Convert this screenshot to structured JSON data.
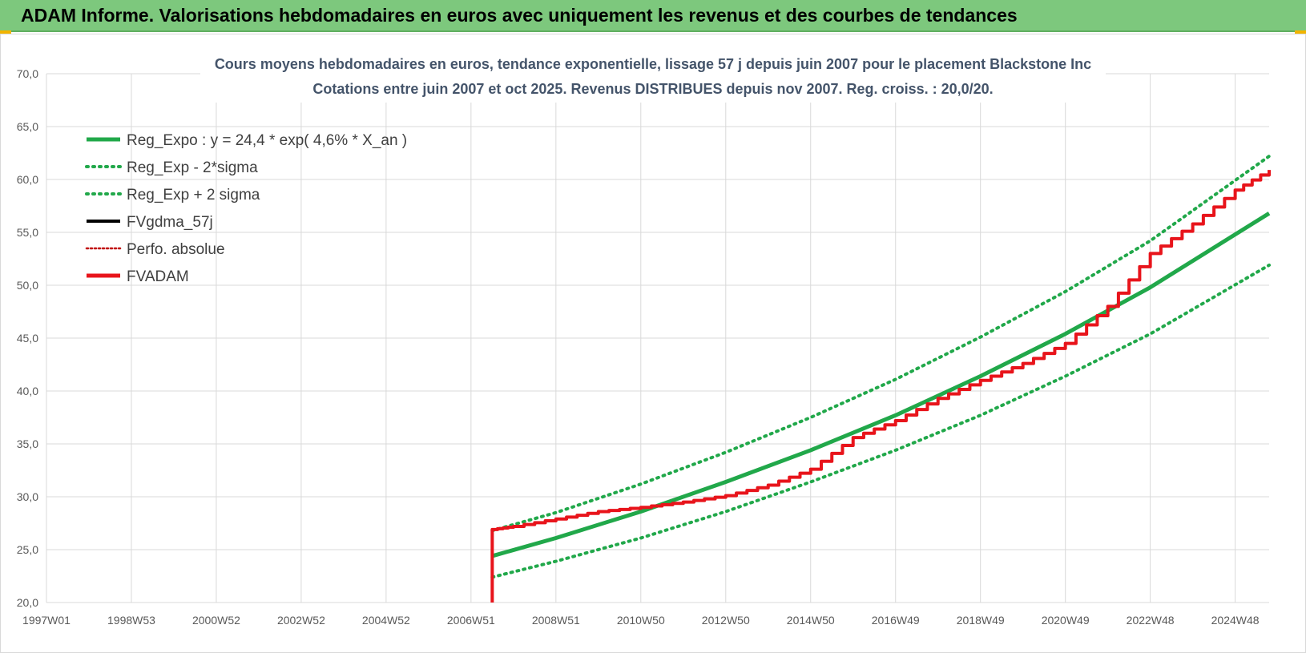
{
  "header": {
    "title": "ADAM Informe. Valorisations hebdomadaires en euros avec uniquement les revenus et des courbes de tendances"
  },
  "colors": {
    "header_bg": "#7dc87d",
    "reg_green": "#21a84a",
    "red": "#e8141b",
    "black": "#000000",
    "dark_red": "#c00000",
    "grid": "#d9d9d9"
  },
  "chart_data": {
    "type": "line",
    "title": "Cours moyens hebdomadaires en euros, tendance exponentielle, lissage 57 j depuis juin 2007 pour le placement Blackstone Inc",
    "subtitle": "Cotations entre juin 2007 et oct 2025. Revenus DISTRIBUES depuis nov 2007. Reg. croiss. : 20,0/20.",
    "xlabel": "",
    "ylabel": "",
    "ylim": [
      20,
      70
    ],
    "xlim": [
      1997.0,
      2025.8
    ],
    "grid": true,
    "legend_position": "top-left",
    "x_tick_labels": [
      "1997W01",
      "1998W53",
      "2000W52",
      "2002W52",
      "2004W52",
      "2006W51",
      "2008W51",
      "2010W50",
      "2012W50",
      "2014W50",
      "2016W49",
      "2018W49",
      "2020W49",
      "2022W48",
      "2024W48"
    ],
    "x_tick_values": [
      1997.0,
      1999.0,
      2001.0,
      2003.0,
      2005.0,
      2007.0,
      2009.0,
      2011.0,
      2013.0,
      2015.0,
      2017.0,
      2019.0,
      2021.0,
      2023.0,
      2025.0
    ],
    "y_tick_labels": [
      "20,0",
      "25,0",
      "30,0",
      "35,0",
      "40,0",
      "45,0",
      "50,0",
      "55,0",
      "60,0",
      "65,0",
      "70,0"
    ],
    "y_tick_values": [
      20,
      25,
      30,
      35,
      40,
      45,
      50,
      55,
      60,
      65,
      70
    ],
    "series": [
      {
        "name": "Reg_Expo : y = 24,4 * exp( 4,6% *  X_an )",
        "style": "solid-thick",
        "color": "#21a84a",
        "x": [
          2007.5,
          2009,
          2011,
          2013,
          2015,
          2017,
          2019,
          2021,
          2023,
          2025.8
        ],
        "y": [
          24.4,
          26.1,
          28.6,
          31.4,
          34.4,
          37.7,
          41.4,
          45.4,
          49.8,
          56.8
        ]
      },
      {
        "name": "Reg_Exp - 2*sigma",
        "style": "dotted",
        "color": "#21a84a",
        "x": [
          2007.5,
          2009,
          2011,
          2013,
          2015,
          2017,
          2019,
          2021,
          2023,
          2025.8
        ],
        "y": [
          22.4,
          23.9,
          26.1,
          28.6,
          31.4,
          34.4,
          37.7,
          41.4,
          45.4,
          51.9
        ]
      },
      {
        "name": "Reg_Exp + 2 sigma",
        "style": "dotted",
        "color": "#21a84a",
        "x": [
          2007.5,
          2009,
          2011,
          2013,
          2015,
          2017,
          2019,
          2021,
          2023,
          2025.8
        ],
        "y": [
          26.8,
          28.5,
          31.2,
          34.2,
          37.5,
          41.1,
          45.1,
          49.4,
          54.2,
          62.2
        ]
      },
      {
        "name": "FVgdma_57j",
        "style": "solid",
        "color": "#000000",
        "x": [
          2007.5,
          2008,
          2009,
          2010,
          2011,
          2012,
          2013,
          2014,
          2015,
          2016,
          2017,
          2018,
          2019,
          2020,
          2021,
          2022,
          2023,
          2024,
          2025,
          2025.8
        ],
        "y": [
          26.9,
          27.2,
          27.9,
          28.6,
          29.0,
          29.5,
          30.1,
          31.1,
          32.6,
          35.6,
          37.2,
          39.3,
          41.0,
          42.6,
          44.5,
          48.0,
          53.0,
          55.8,
          59.0,
          60.8
        ]
      },
      {
        "name": "Perfo. absolue",
        "style": "dotted",
        "color": "#c00000",
        "x": [
          2007.5,
          2008,
          2009,
          2010,
          2011,
          2012,
          2013,
          2014,
          2015,
          2016,
          2017,
          2018,
          2019,
          2020,
          2021,
          2022,
          2023,
          2024,
          2025,
          2025.8
        ],
        "y": [
          26.9,
          27.2,
          27.9,
          28.6,
          29.0,
          29.5,
          30.1,
          31.1,
          32.6,
          35.6,
          37.2,
          39.3,
          41.0,
          42.6,
          44.5,
          48.0,
          53.0,
          55.8,
          59.0,
          60.9
        ]
      },
      {
        "name": "FVADAM",
        "style": "solid-thick",
        "color": "#e8141b",
        "x": [
          2007.5,
          2007.5,
          2008,
          2009,
          2010,
          2011,
          2012,
          2013,
          2014,
          2015,
          2016,
          2017,
          2018,
          2019,
          2020,
          2021,
          2022,
          2023,
          2024,
          2025,
          2025.8
        ],
        "y": [
          20.0,
          26.9,
          27.2,
          27.9,
          28.6,
          29.0,
          29.5,
          30.1,
          31.1,
          32.6,
          35.6,
          37.2,
          39.3,
          41.0,
          42.6,
          44.5,
          48.0,
          53.0,
          55.8,
          59.0,
          60.9
        ]
      }
    ]
  }
}
